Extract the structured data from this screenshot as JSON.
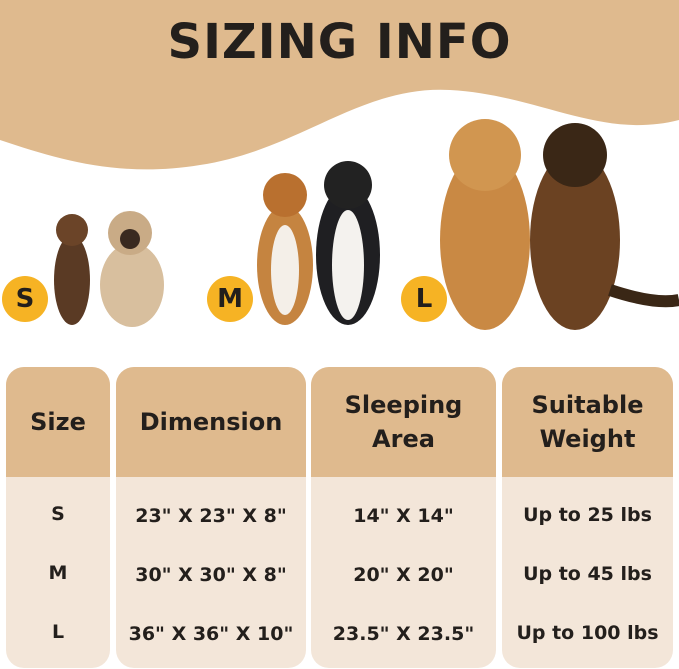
{
  "title": "SIZING INFO",
  "colors": {
    "banner": "#dfba8e",
    "header": "#dfba8e",
    "body": "#f3e6d9",
    "badge": "#f6b324"
  },
  "size_badges": [
    "S",
    "M",
    "L"
  ],
  "table": {
    "headers": [
      "Size",
      "Dimension",
      "Sleeping Area",
      "Suitable Weight"
    ],
    "rows": [
      [
        "S",
        "23\" X 23\" X 8\"",
        "14\" X 14\"",
        "Up to 25 lbs"
      ],
      [
        "M",
        "30\" X 30\" X 8\"",
        "20\" X 20\"",
        "Up to 45 lbs"
      ],
      [
        "L",
        "36\" X 36\" X 10\"",
        "23.5\" X 23.5\"",
        "Up to 100 lbs"
      ]
    ]
  }
}
